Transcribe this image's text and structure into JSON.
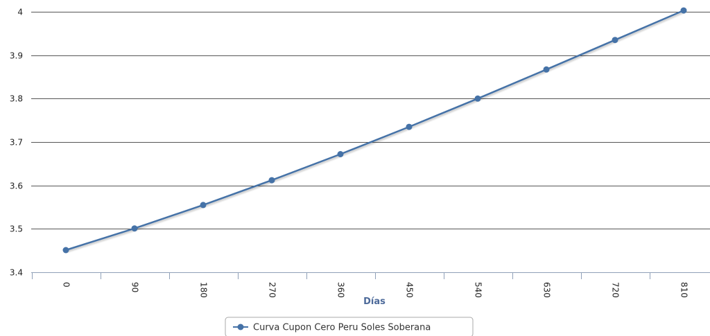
{
  "chart_data": {
    "type": "line",
    "x": [
      0,
      90,
      180,
      270,
      360,
      450,
      540,
      630,
      720,
      810
    ],
    "series": [
      {
        "name": "Curva Cupon Cero Peru Soles Soberana",
        "values": [
          3.451,
          3.501,
          3.555,
          3.612,
          3.672,
          3.735,
          3.8,
          3.867,
          3.935,
          4.003
        ]
      }
    ],
    "xlabel": "Días",
    "ylabel": "",
    "x_tick_labels": [
      "0",
      "90",
      "180",
      "270",
      "360",
      "450",
      "540",
      "630",
      "720",
      "810"
    ],
    "y_tick_labels": [
      "3.4",
      "3.5",
      "3.6",
      "3.7",
      "3.8",
      "3.9",
      "4"
    ],
    "ylim": [
      3.4,
      4.0
    ],
    "grid": "horizontal",
    "legend": "bottom-center",
    "colors": {
      "series": "#4572a7",
      "grid": "#555555",
      "axis_title": "#4d6a9a"
    }
  }
}
